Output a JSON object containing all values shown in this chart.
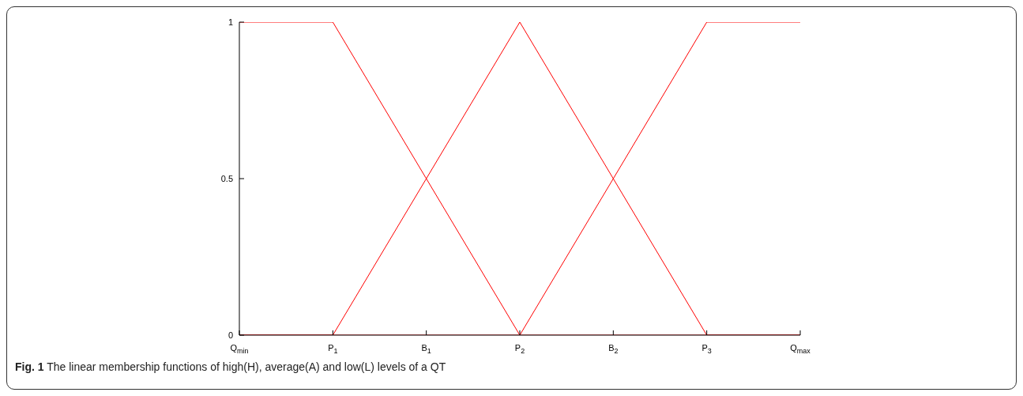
{
  "chart_data": {
    "type": "line",
    "categories": [
      "Q$_{min}$",
      "P$_{1}$",
      "B$_{1}$",
      "P$_{2}$",
      "B$_{2}$",
      "P$_{3}$",
      "Q$_{max}$"
    ],
    "series": [
      {
        "color": "#ff0000",
        "values": [
          1,
          1,
          0.5,
          0,
          0,
          0,
          0
        ]
      },
      {
        "color": "#ff0000",
        "values": [
          0,
          0,
          0.5,
          1,
          0.5,
          0,
          0
        ]
      },
      {
        "color": "#ff0000",
        "values": [
          0,
          0,
          0,
          0,
          0.5,
          1,
          1
        ]
      }
    ],
    "ylim": [
      0,
      1
    ],
    "yticks": [
      0,
      0.5,
      1
    ],
    "annotations": [
      "Fig. 1 The linear membership functions of high(H), average(A) and low(L) levels of a QT"
    ]
  }
}
